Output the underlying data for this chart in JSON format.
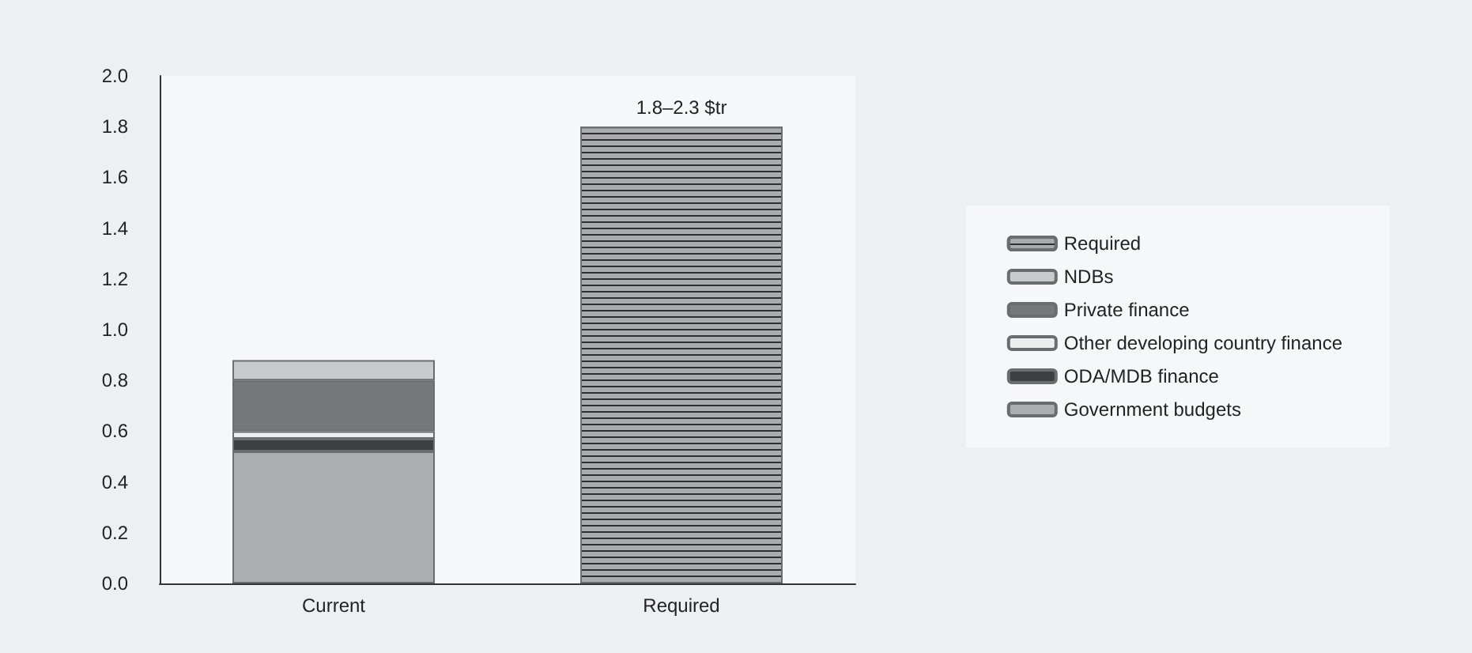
{
  "chart_data": {
    "type": "bar",
    "stacked": true,
    "categories": [
      "Current",
      "Required"
    ],
    "series": [
      {
        "name": "Government budgets",
        "color": "#abaeb1",
        "values": [
          0.52,
          null
        ]
      },
      {
        "name": "ODA/MDB finance",
        "color": "#3d4042",
        "values": [
          0.05,
          null
        ]
      },
      {
        "name": "Other developing country finance",
        "color": "#eceeee",
        "values": [
          0.03,
          null
        ]
      },
      {
        "name": "Private finance",
        "color": "#76797b",
        "values": [
          0.2,
          null
        ]
      },
      {
        "name": "NDBs",
        "color": "#c8cbcc",
        "values": [
          0.08,
          null
        ]
      },
      {
        "name": "Required",
        "color": "#a9abad",
        "values": [
          null,
          1.8
        ]
      }
    ],
    "ylim": [
      0,
      2
    ],
    "yticks": [
      {
        "value": 0,
        "label": "0.0"
      },
      0.2,
      0.4,
      0.6,
      0.8,
      {
        "value": 1,
        "label": "1.0"
      },
      1.2,
      1.4,
      1.6,
      1.8,
      {
        "value": 2,
        "label": "2.0"
      }
    ],
    "grid": false,
    "legend": "right",
    "annotations": [
      {
        "text": "1.8–2.3 $tr",
        "x": "Required",
        "y": 1.8
      }
    ]
  }
}
